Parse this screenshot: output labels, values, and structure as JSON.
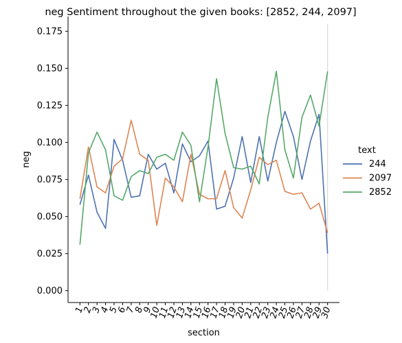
{
  "chart_data": {
    "type": "line",
    "title": "neg Sentiment throughout the given books: [2852, 244, 2097]",
    "xlabel": "section",
    "ylabel": "neg",
    "x": [
      1,
      2,
      3,
      4,
      5,
      6,
      7,
      8,
      9,
      10,
      11,
      12,
      13,
      14,
      15,
      16,
      17,
      18,
      19,
      20,
      21,
      22,
      23,
      24,
      25,
      26,
      27,
      28,
      29,
      30
    ],
    "x_tick_labels": [
      "1",
      "2",
      "3",
      "4",
      "5",
      "6",
      "7",
      "8",
      "9",
      "10",
      "11",
      "12",
      "13",
      "14",
      "15",
      "16",
      "17",
      "18",
      "19",
      "20",
      "21",
      "22",
      "23",
      "24",
      "25",
      "26",
      "27",
      "28",
      "29",
      "30"
    ],
    "ylim": [
      -0.008,
      0.185
    ],
    "y_ticks": [
      0.0,
      0.025,
      0.05,
      0.075,
      0.1,
      0.125,
      0.15,
      0.175
    ],
    "y_tick_labels": [
      "0.000",
      "0.025",
      "0.050",
      "0.075",
      "0.100",
      "0.125",
      "0.150",
      "0.175"
    ],
    "legend": {
      "title": "text",
      "placement": "right"
    },
    "series": [
      {
        "name": "244",
        "color": "#4c72b0",
        "values": [
          0.058,
          0.078,
          0.053,
          0.042,
          0.102,
          0.088,
          0.063,
          0.064,
          0.092,
          0.082,
          0.086,
          0.066,
          0.099,
          0.087,
          0.091,
          0.101,
          0.055,
          0.057,
          0.076,
          0.104,
          0.073,
          0.104,
          0.074,
          0.1,
          0.121,
          0.104,
          0.075,
          0.101,
          0.119,
          0.025
        ]
      },
      {
        "name": "2097",
        "color": "#dd8452",
        "values": [
          0.062,
          0.097,
          0.07,
          0.066,
          0.084,
          0.089,
          0.115,
          0.092,
          0.088,
          0.044,
          0.076,
          0.07,
          0.06,
          0.092,
          0.065,
          0.062,
          0.062,
          0.081,
          0.056,
          0.049,
          0.068,
          0.09,
          0.085,
          0.088,
          0.067,
          0.065,
          0.066,
          0.055,
          0.059,
          0.039
        ]
      },
      {
        "name": "2852",
        "color": "#55a868",
        "values": [
          0.031,
          0.093,
          0.107,
          0.095,
          0.064,
          0.061,
          0.077,
          0.081,
          0.079,
          0.09,
          0.092,
          0.088,
          0.107,
          0.098,
          0.06,
          0.097,
          0.143,
          0.106,
          0.083,
          0.082,
          0.084,
          0.072,
          0.117,
          0.148,
          0.095,
          0.076,
          0.117,
          0.132,
          0.111,
          0.148
        ]
      }
    ]
  }
}
